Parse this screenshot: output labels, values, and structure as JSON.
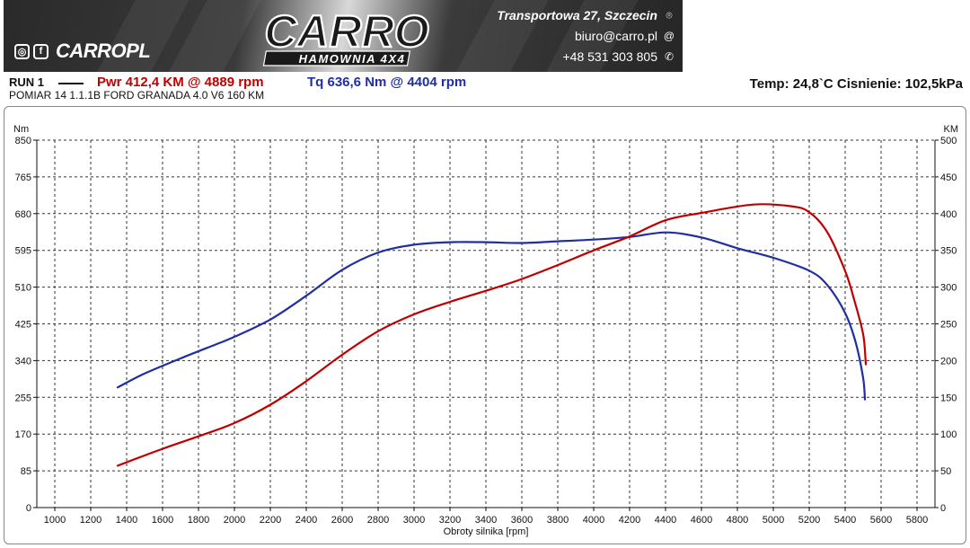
{
  "header": {
    "logo_text": "CARRO",
    "logo_subtext": "HAMOWNIA 4X4",
    "social_handle": "CARROPL",
    "social_icons": [
      "instagram-icon",
      "facebook-icon"
    ],
    "address": "Transportowa 27, Szczecin",
    "email": "biuro@carro.pl",
    "phone": "+48 531 303 805",
    "contact_icons": [
      "location-pin-icon",
      "at-icon",
      "whatsapp-icon"
    ]
  },
  "run": {
    "label": "RUN 1",
    "power": "Pwr  412,4 KM @ 4889 rpm",
    "torque": "Tq 636,6 Nm @ 4404 rpm",
    "measurement": "POMIAR 14 1.1.1B FORD GRANADA 4.0 V6 160 KM",
    "conditions": "Temp: 24,8`C   Cisnienie: 102,5kPa"
  },
  "colors": {
    "power": "#c00000",
    "torque": "#1f2fa3",
    "grid": "#333333"
  },
  "chart_data": {
    "type": "line",
    "title": "",
    "xlabel": "Obroty silnika [rpm]",
    "ylabel_left": "Nm",
    "ylabel_right": "KM",
    "xlim": [
      900,
      5900
    ],
    "ylim_left": [
      0,
      850
    ],
    "ylim_right": [
      0,
      500
    ],
    "x_ticks": [
      1000,
      1200,
      1400,
      1600,
      1800,
      2000,
      2200,
      2400,
      2600,
      2800,
      3000,
      3200,
      3400,
      3600,
      3800,
      4000,
      4200,
      4400,
      4600,
      4800,
      5000,
      5200,
      5400,
      5600,
      5800
    ],
    "y_ticks_left": [
      0,
      85,
      170,
      255,
      340,
      425,
      510,
      595,
      680,
      765,
      850
    ],
    "y_ticks_right": [
      0,
      50,
      100,
      150,
      200,
      250,
      300,
      350,
      400,
      450,
      500
    ],
    "grid": true,
    "series": [
      {
        "name": "Tq",
        "axis": "left",
        "color": "#1f2fa3",
        "x": [
          1350,
          1500,
          1700,
          1900,
          2000,
          2200,
          2400,
          2600,
          2800,
          3000,
          3200,
          3400,
          3600,
          3800,
          4000,
          4200,
          4404,
          4600,
          4800,
          5000,
          5200,
          5300,
          5400,
          5460,
          5500,
          5510
        ],
        "values": [
          278,
          310,
          345,
          378,
          395,
          435,
          490,
          550,
          590,
          608,
          614,
          614,
          612,
          616,
          620,
          626,
          636.6,
          625,
          600,
          578,
          548,
          515,
          450,
          380,
          300,
          250
        ]
      },
      {
        "name": "Pwr",
        "axis": "right",
        "color": "#c00000",
        "x": [
          1350,
          1600,
          1800,
          2000,
          2200,
          2400,
          2600,
          2800,
          3000,
          3200,
          3400,
          3600,
          3800,
          4000,
          4200,
          4400,
          4600,
          4889,
          5100,
          5200,
          5300,
          5400,
          5450,
          5500,
          5515
        ],
        "values": [
          57,
          80,
          97,
          115,
          140,
          172,
          208,
          240,
          263,
          280,
          295,
          311,
          330,
          350,
          369,
          391,
          401,
          412.4,
          410,
          402,
          375,
          322,
          283,
          236,
          195
        ]
      }
    ]
  }
}
